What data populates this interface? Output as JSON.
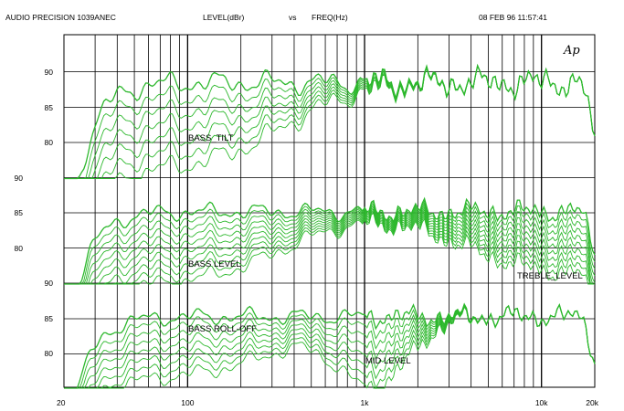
{
  "header": {
    "brand": "AUDIO   PRECISION   1039ANEC",
    "measure": "LEVEL(dBr)",
    "vs": "vs",
    "axis": "FREQ(Hz)",
    "date": "08   FEB   96   11:57:41"
  },
  "logo": "Ap",
  "chart_data": {
    "type": "line",
    "title": "",
    "xlabel": "",
    "ylabel": "",
    "xscale": "log",
    "xlim": [
      20,
      20000
    ],
    "x_tick_labels": [
      "20",
      "100",
      "1k",
      "10k",
      "20k"
    ],
    "y_tick_labels": {
      "top": [
        "90",
        "85",
        "80"
      ],
      "middle": [
        "90",
        "85",
        "80"
      ],
      "bottom": [
        "90",
        "85",
        "80"
      ]
    },
    "grid": true,
    "line_color": "#2db82d",
    "annotations": [
      "BASS_TILT",
      "BASS LEVEL",
      "TREBLE_LEVEL",
      "BASS ROLL-OFF",
      "MID LEVEL"
    ],
    "groups": [
      {
        "name": "BASS TILT",
        "ylim": [
          75,
          92
        ],
        "base": 86.8,
        "curves": 7,
        "bass_offsets": [
          0,
          -1.2,
          -2.4,
          -3.6,
          -4.8,
          -6.0,
          -7.2
        ],
        "treble_offsets": [
          0,
          0,
          0,
          0,
          0,
          0,
          0
        ]
      },
      {
        "name": "BASS LEVEL / TREBLE LEVEL",
        "ylim": [
          75,
          92
        ],
        "base": 87.0,
        "curves": 10,
        "bass_offsets": [
          0,
          -0.9,
          -1.8,
          -2.7,
          -3.6,
          -4.5,
          -5.4,
          -6.3,
          -7.2,
          -8.1
        ],
        "treble_offsets": [
          0,
          -0.8,
          -1.6,
          -2.4,
          -3.2,
          -4.0,
          -4.8,
          -5.6,
          -6.4,
          -7.2
        ]
      },
      {
        "name": "BASS ROLL-OFF / MID LEVEL",
        "ylim": [
          75,
          92
        ],
        "base": 87.0,
        "curves": 8,
        "bass_offsets": [
          0,
          -1.0,
          -2.0,
          -3.0,
          -4.0,
          -5.0,
          -6.0,
          -7.0
        ],
        "mid_offsets": [
          0,
          -0.8,
          -1.6,
          -2.4,
          -3.2,
          -4.0,
          -4.8,
          -5.6
        ]
      }
    ]
  }
}
